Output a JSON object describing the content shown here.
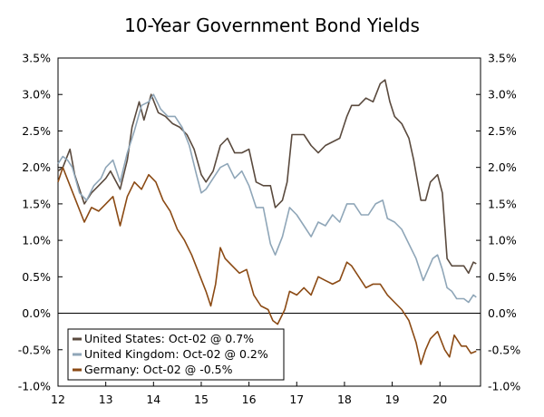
{
  "chart_data": {
    "type": "line",
    "title": "10-Year Government Bond Yields",
    "xlabel": "",
    "ylabel": "",
    "x_ticks": [
      "12",
      "13",
      "14",
      "15",
      "16",
      "17",
      "18",
      "19",
      "20"
    ],
    "x_tick_values": [
      2012,
      2013,
      2014,
      2015,
      2016,
      2017,
      2018,
      2019,
      2020
    ],
    "xlim": [
      2012,
      2020.85
    ],
    "ylim": [
      -1.0,
      3.5
    ],
    "y_ticks": [
      "-1.0%",
      "-0.5%",
      "0.0%",
      "0.5%",
      "1.0%",
      "1.5%",
      "2.0%",
      "2.5%",
      "3.0%",
      "3.5%"
    ],
    "y_tick_values": [
      -1.0,
      -0.5,
      0.0,
      0.5,
      1.0,
      1.5,
      2.0,
      2.5,
      3.0,
      3.5
    ],
    "grid": false,
    "zero_line": true,
    "legend_position": "bottom-left",
    "series": [
      {
        "name": "United States",
        "legend": "United States: Oct-02 @ 0.7%",
        "color": "#5a4a3e",
        "points": [
          [
            2012.0,
            1.95
          ],
          [
            2012.1,
            2.0
          ],
          [
            2012.25,
            2.25
          ],
          [
            2012.35,
            1.9
          ],
          [
            2012.55,
            1.5
          ],
          [
            2012.7,
            1.65
          ],
          [
            2012.85,
            1.75
          ],
          [
            2013.0,
            1.85
          ],
          [
            2013.1,
            1.95
          ],
          [
            2013.3,
            1.7
          ],
          [
            2013.45,
            2.1
          ],
          [
            2013.55,
            2.55
          ],
          [
            2013.7,
            2.9
          ],
          [
            2013.8,
            2.65
          ],
          [
            2013.95,
            3.0
          ],
          [
            2014.1,
            2.75
          ],
          [
            2014.25,
            2.7
          ],
          [
            2014.4,
            2.6
          ],
          [
            2014.55,
            2.55
          ],
          [
            2014.7,
            2.45
          ],
          [
            2014.85,
            2.25
          ],
          [
            2015.0,
            1.9
          ],
          [
            2015.1,
            1.8
          ],
          [
            2015.25,
            1.95
          ],
          [
            2015.4,
            2.3
          ],
          [
            2015.55,
            2.4
          ],
          [
            2015.7,
            2.2
          ],
          [
            2015.85,
            2.2
          ],
          [
            2016.0,
            2.25
          ],
          [
            2016.15,
            1.8
          ],
          [
            2016.3,
            1.75
          ],
          [
            2016.45,
            1.75
          ],
          [
            2016.55,
            1.45
          ],
          [
            2016.7,
            1.55
          ],
          [
            2016.8,
            1.8
          ],
          [
            2016.9,
            2.45
          ],
          [
            2017.0,
            2.45
          ],
          [
            2017.15,
            2.45
          ],
          [
            2017.3,
            2.3
          ],
          [
            2017.45,
            2.2
          ],
          [
            2017.6,
            2.3
          ],
          [
            2017.75,
            2.35
          ],
          [
            2017.9,
            2.4
          ],
          [
            2018.05,
            2.7
          ],
          [
            2018.15,
            2.85
          ],
          [
            2018.3,
            2.85
          ],
          [
            2018.45,
            2.95
          ],
          [
            2018.6,
            2.9
          ],
          [
            2018.75,
            3.15
          ],
          [
            2018.85,
            3.2
          ],
          [
            2018.95,
            2.9
          ],
          [
            2019.05,
            2.7
          ],
          [
            2019.2,
            2.6
          ],
          [
            2019.35,
            2.4
          ],
          [
            2019.45,
            2.1
          ],
          [
            2019.6,
            1.55
          ],
          [
            2019.7,
            1.55
          ],
          [
            2019.8,
            1.8
          ],
          [
            2019.95,
            1.9
          ],
          [
            2020.05,
            1.65
          ],
          [
            2020.15,
            0.75
          ],
          [
            2020.25,
            0.65
          ],
          [
            2020.35,
            0.65
          ],
          [
            2020.5,
            0.65
          ],
          [
            2020.6,
            0.55
          ],
          [
            2020.7,
            0.7
          ],
          [
            2020.76,
            0.68
          ]
        ]
      },
      {
        "name": "United Kingdom",
        "legend": "United Kingdom: Oct-02 @ 0.2%",
        "color": "#8fa6b8",
        "points": [
          [
            2012.0,
            2.05
          ],
          [
            2012.1,
            2.15
          ],
          [
            2012.2,
            2.1
          ],
          [
            2012.3,
            2.0
          ],
          [
            2012.45,
            1.65
          ],
          [
            2012.6,
            1.55
          ],
          [
            2012.75,
            1.75
          ],
          [
            2012.9,
            1.85
          ],
          [
            2013.0,
            2.0
          ],
          [
            2013.15,
            2.1
          ],
          [
            2013.3,
            1.8
          ],
          [
            2013.45,
            2.2
          ],
          [
            2013.6,
            2.5
          ],
          [
            2013.75,
            2.85
          ],
          [
            2013.9,
            2.9
          ],
          [
            2014.0,
            3.0
          ],
          [
            2014.15,
            2.8
          ],
          [
            2014.3,
            2.7
          ],
          [
            2014.45,
            2.7
          ],
          [
            2014.6,
            2.55
          ],
          [
            2014.75,
            2.3
          ],
          [
            2014.9,
            1.9
          ],
          [
            2015.0,
            1.65
          ],
          [
            2015.1,
            1.7
          ],
          [
            2015.25,
            1.85
          ],
          [
            2015.4,
            2.0
          ],
          [
            2015.55,
            2.05
          ],
          [
            2015.7,
            1.85
          ],
          [
            2015.85,
            1.95
          ],
          [
            2016.0,
            1.75
          ],
          [
            2016.15,
            1.45
          ],
          [
            2016.3,
            1.45
          ],
          [
            2016.45,
            0.95
          ],
          [
            2016.55,
            0.8
          ],
          [
            2016.7,
            1.05
          ],
          [
            2016.85,
            1.45
          ],
          [
            2017.0,
            1.35
          ],
          [
            2017.15,
            1.2
          ],
          [
            2017.3,
            1.05
          ],
          [
            2017.45,
            1.25
          ],
          [
            2017.6,
            1.2
          ],
          [
            2017.75,
            1.35
          ],
          [
            2017.9,
            1.25
          ],
          [
            2018.05,
            1.5
          ],
          [
            2018.2,
            1.5
          ],
          [
            2018.35,
            1.35
          ],
          [
            2018.5,
            1.35
          ],
          [
            2018.65,
            1.5
          ],
          [
            2018.8,
            1.55
          ],
          [
            2018.9,
            1.3
          ],
          [
            2019.05,
            1.25
          ],
          [
            2019.2,
            1.15
          ],
          [
            2019.35,
            0.95
          ],
          [
            2019.5,
            0.75
          ],
          [
            2019.65,
            0.45
          ],
          [
            2019.75,
            0.6
          ],
          [
            2019.85,
            0.75
          ],
          [
            2019.95,
            0.8
          ],
          [
            2020.05,
            0.6
          ],
          [
            2020.15,
            0.35
          ],
          [
            2020.25,
            0.3
          ],
          [
            2020.35,
            0.2
          ],
          [
            2020.5,
            0.2
          ],
          [
            2020.6,
            0.15
          ],
          [
            2020.7,
            0.25
          ],
          [
            2020.76,
            0.22
          ]
        ]
      },
      {
        "name": "Germany",
        "legend": "Germany: Oct-02 @ -0.5%",
        "color": "#8b4a14",
        "points": [
          [
            2012.0,
            1.8
          ],
          [
            2012.1,
            2.0
          ],
          [
            2012.25,
            1.75
          ],
          [
            2012.4,
            1.5
          ],
          [
            2012.55,
            1.25
          ],
          [
            2012.7,
            1.45
          ],
          [
            2012.85,
            1.4
          ],
          [
            2013.0,
            1.5
          ],
          [
            2013.15,
            1.6
          ],
          [
            2013.3,
            1.2
          ],
          [
            2013.45,
            1.6
          ],
          [
            2013.6,
            1.8
          ],
          [
            2013.75,
            1.7
          ],
          [
            2013.9,
            1.9
          ],
          [
            2014.05,
            1.8
          ],
          [
            2014.2,
            1.55
          ],
          [
            2014.35,
            1.4
          ],
          [
            2014.5,
            1.15
          ],
          [
            2014.65,
            1.0
          ],
          [
            2014.8,
            0.8
          ],
          [
            2014.95,
            0.55
          ],
          [
            2015.1,
            0.3
          ],
          [
            2015.2,
            0.1
          ],
          [
            2015.3,
            0.4
          ],
          [
            2015.4,
            0.9
          ],
          [
            2015.5,
            0.75
          ],
          [
            2015.65,
            0.65
          ],
          [
            2015.8,
            0.55
          ],
          [
            2015.95,
            0.6
          ],
          [
            2016.1,
            0.25
          ],
          [
            2016.25,
            0.1
          ],
          [
            2016.4,
            0.05
          ],
          [
            2016.5,
            -0.1
          ],
          [
            2016.6,
            -0.15
          ],
          [
            2016.75,
            0.05
          ],
          [
            2016.85,
            0.3
          ],
          [
            2017.0,
            0.25
          ],
          [
            2017.15,
            0.35
          ],
          [
            2017.3,
            0.25
          ],
          [
            2017.45,
            0.5
          ],
          [
            2017.6,
            0.45
          ],
          [
            2017.75,
            0.4
          ],
          [
            2017.9,
            0.45
          ],
          [
            2018.05,
            0.7
          ],
          [
            2018.15,
            0.65
          ],
          [
            2018.3,
            0.5
          ],
          [
            2018.45,
            0.35
          ],
          [
            2018.6,
            0.4
          ],
          [
            2018.75,
            0.4
          ],
          [
            2018.9,
            0.25
          ],
          [
            2019.05,
            0.15
          ],
          [
            2019.2,
            0.05
          ],
          [
            2019.35,
            -0.1
          ],
          [
            2019.5,
            -0.4
          ],
          [
            2019.6,
            -0.7
          ],
          [
            2019.7,
            -0.5
          ],
          [
            2019.8,
            -0.35
          ],
          [
            2019.95,
            -0.25
          ],
          [
            2020.1,
            -0.5
          ],
          [
            2020.2,
            -0.6
          ],
          [
            2020.3,
            -0.3
          ],
          [
            2020.45,
            -0.45
          ],
          [
            2020.55,
            -0.45
          ],
          [
            2020.65,
            -0.55
          ],
          [
            2020.76,
            -0.52
          ]
        ]
      }
    ]
  }
}
